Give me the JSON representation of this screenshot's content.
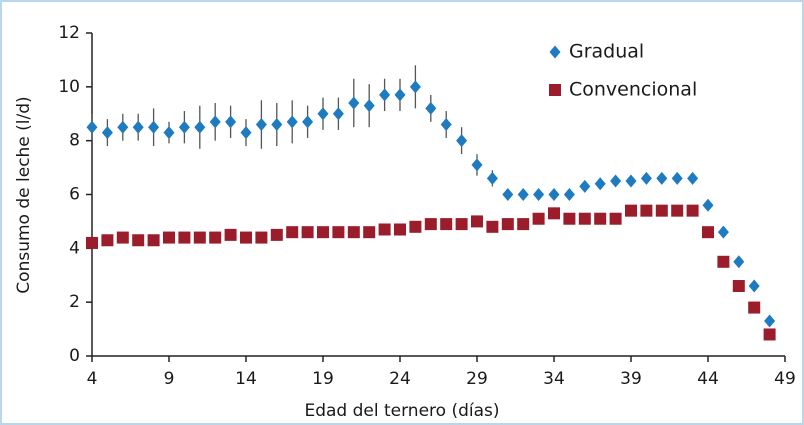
{
  "chart_data": {
    "type": "scatter",
    "xlabel": "Edad del ternero (días)",
    "ylabel": "Consumo de leche (l/d)",
    "x": [
      4,
      5,
      6,
      7,
      8,
      9,
      10,
      11,
      12,
      13,
      14,
      15,
      16,
      17,
      18,
      19,
      20,
      21,
      22,
      23,
      24,
      25,
      26,
      27,
      28,
      29,
      30,
      31,
      32,
      33,
      34,
      35,
      36,
      37,
      38,
      39,
      40,
      41,
      42,
      43,
      44,
      45,
      46,
      47,
      48
    ],
    "series": [
      {
        "name": "Gradual",
        "color": "#1f7bbf",
        "marker": "diamond",
        "values": [
          8.5,
          8.3,
          8.5,
          8.5,
          8.5,
          8.3,
          8.5,
          8.5,
          8.7,
          8.7,
          8.3,
          8.6,
          8.6,
          8.7,
          8.7,
          9.0,
          9.0,
          9.4,
          9.3,
          9.7,
          9.7,
          10.0,
          9.2,
          8.6,
          8.0,
          7.1,
          6.6,
          6.0,
          6.0,
          6.0,
          6.0,
          6.0,
          6.3,
          6.4,
          6.5,
          6.5,
          6.6,
          6.6,
          6.6,
          6.6,
          5.6,
          4.6,
          3.5,
          2.6,
          1.3
        ],
        "errors": [
          0.5,
          0.5,
          0.5,
          0.5,
          0.7,
          0.4,
          0.6,
          0.8,
          0.7,
          0.6,
          0.5,
          0.9,
          0.8,
          0.8,
          0.6,
          0.6,
          0.6,
          0.9,
          0.8,
          0.6,
          0.6,
          0.8,
          0.5,
          0.5,
          0.5,
          0.4,
          0.3,
          null,
          null,
          null,
          null,
          null,
          null,
          null,
          null,
          null,
          null,
          null,
          null,
          null,
          null,
          null,
          null,
          null,
          null
        ]
      },
      {
        "name": "Convencional",
        "color": "#9b1c2a",
        "marker": "square",
        "values": [
          4.2,
          4.3,
          4.4,
          4.3,
          4.3,
          4.4,
          4.4,
          4.4,
          4.4,
          4.5,
          4.4,
          4.4,
          4.5,
          4.6,
          4.6,
          4.6,
          4.6,
          4.6,
          4.6,
          4.7,
          4.7,
          4.8,
          4.9,
          4.9,
          4.9,
          5.0,
          4.8,
          4.9,
          4.9,
          5.1,
          5.3,
          5.1,
          5.1,
          5.1,
          5.1,
          5.4,
          5.4,
          5.4,
          5.4,
          5.4,
          4.6,
          3.5,
          2.6,
          1.8,
          0.8
        ]
      }
    ],
    "xlim": [
      4,
      49
    ],
    "xticks": [
      4,
      9,
      14,
      19,
      24,
      29,
      34,
      39,
      44,
      49
    ],
    "ylim": [
      0,
      12
    ],
    "yticks": [
      0,
      2,
      4,
      6,
      8,
      10,
      12
    ],
    "legend": "upper right"
  }
}
